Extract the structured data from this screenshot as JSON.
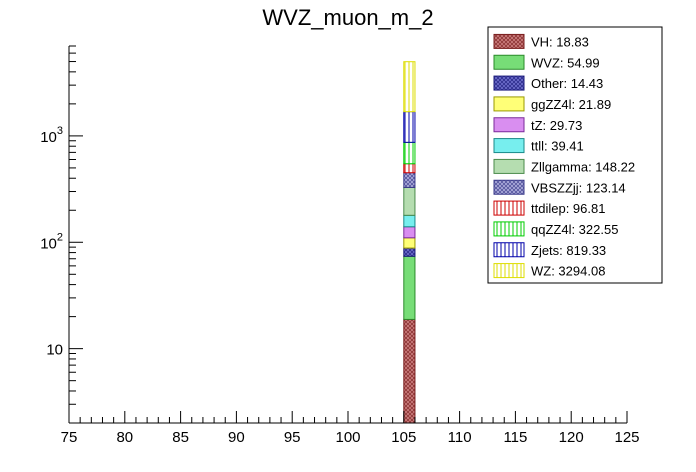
{
  "chart_data": {
    "type": "bar",
    "stacked": true,
    "title": "WVZ_muon_m_2",
    "xlabel": "",
    "ylabel": "",
    "xlim": [
      75,
      125
    ],
    "ylim": [
      2,
      7000
    ],
    "y_scale": "log",
    "x_ticks": [
      "75",
      "80",
      "85",
      "90",
      "95",
      "100",
      "105",
      "110",
      "115",
      "120",
      "125"
    ],
    "y_ticks": [
      {
        "value": 10,
        "base": "10",
        "exp": ""
      },
      {
        "value": 100,
        "base": "10",
        "exp": "2"
      },
      {
        "value": 1000,
        "base": "10",
        "exp": "3"
      }
    ],
    "bin": [
      105,
      106
    ],
    "legend_position": "top-right",
    "series": [
      {
        "name": "VH",
        "label": "VH: 18.83",
        "value": 18.83,
        "fill": "#c87a7a",
        "edge": "#7a1f1f",
        "pattern": "crosshatch"
      },
      {
        "name": "WVZ",
        "label": "WVZ: 54.99",
        "value": 54.99,
        "fill": "#77dd77",
        "edge": "#2a8a2a",
        "pattern": "solid"
      },
      {
        "name": "Other",
        "label": "Other: 14.43",
        "value": 14.43,
        "fill": "#6a6ac8",
        "edge": "#1a1a7a",
        "pattern": "crosshatch"
      },
      {
        "name": "ggZZ4l",
        "label": "ggZZ4l: 21.89",
        "value": 21.89,
        "fill": "#ffff77",
        "edge": "#9a9a00",
        "pattern": "solid"
      },
      {
        "name": "tZ",
        "label": "tZ: 29.73",
        "value": 29.73,
        "fill": "#d98ef0",
        "edge": "#7a2a9a",
        "pattern": "solid"
      },
      {
        "name": "ttll",
        "label": "ttll: 39.41",
        "value": 39.41,
        "fill": "#77eeee",
        "edge": "#1a8a8a",
        "pattern": "solid"
      },
      {
        "name": "Zllgamma",
        "label": "Zllgamma: 148.22",
        "value": 148.22,
        "fill": "#b5ddb0",
        "edge": "#4a8a4a",
        "pattern": "solid"
      },
      {
        "name": "VBSZZjj",
        "label": "VBSZZjj: 123.14",
        "value": 123.14,
        "fill": "#a8a8d8",
        "edge": "#3a3a8a",
        "pattern": "crosshatch"
      },
      {
        "name": "ttdilep",
        "label": "ttdilep: 96.81",
        "value": 96.81,
        "fill": "#ffffff",
        "edge": "#cc0000",
        "pattern": "vlines"
      },
      {
        "name": "qqZZ4l",
        "label": "qqZZ4l: 322.55",
        "value": 322.55,
        "fill": "#ffffff",
        "edge": "#00cc00",
        "pattern": "vlines"
      },
      {
        "name": "Zjets",
        "label": "Zjets: 819.33",
        "value": 819.33,
        "fill": "#ffffff",
        "edge": "#0000aa",
        "pattern": "vlines"
      },
      {
        "name": "WZ",
        "label": "WZ: 3294.08",
        "value": 3294.08,
        "fill": "#ffffff",
        "edge": "#dddd00",
        "pattern": "vlines"
      }
    ]
  }
}
